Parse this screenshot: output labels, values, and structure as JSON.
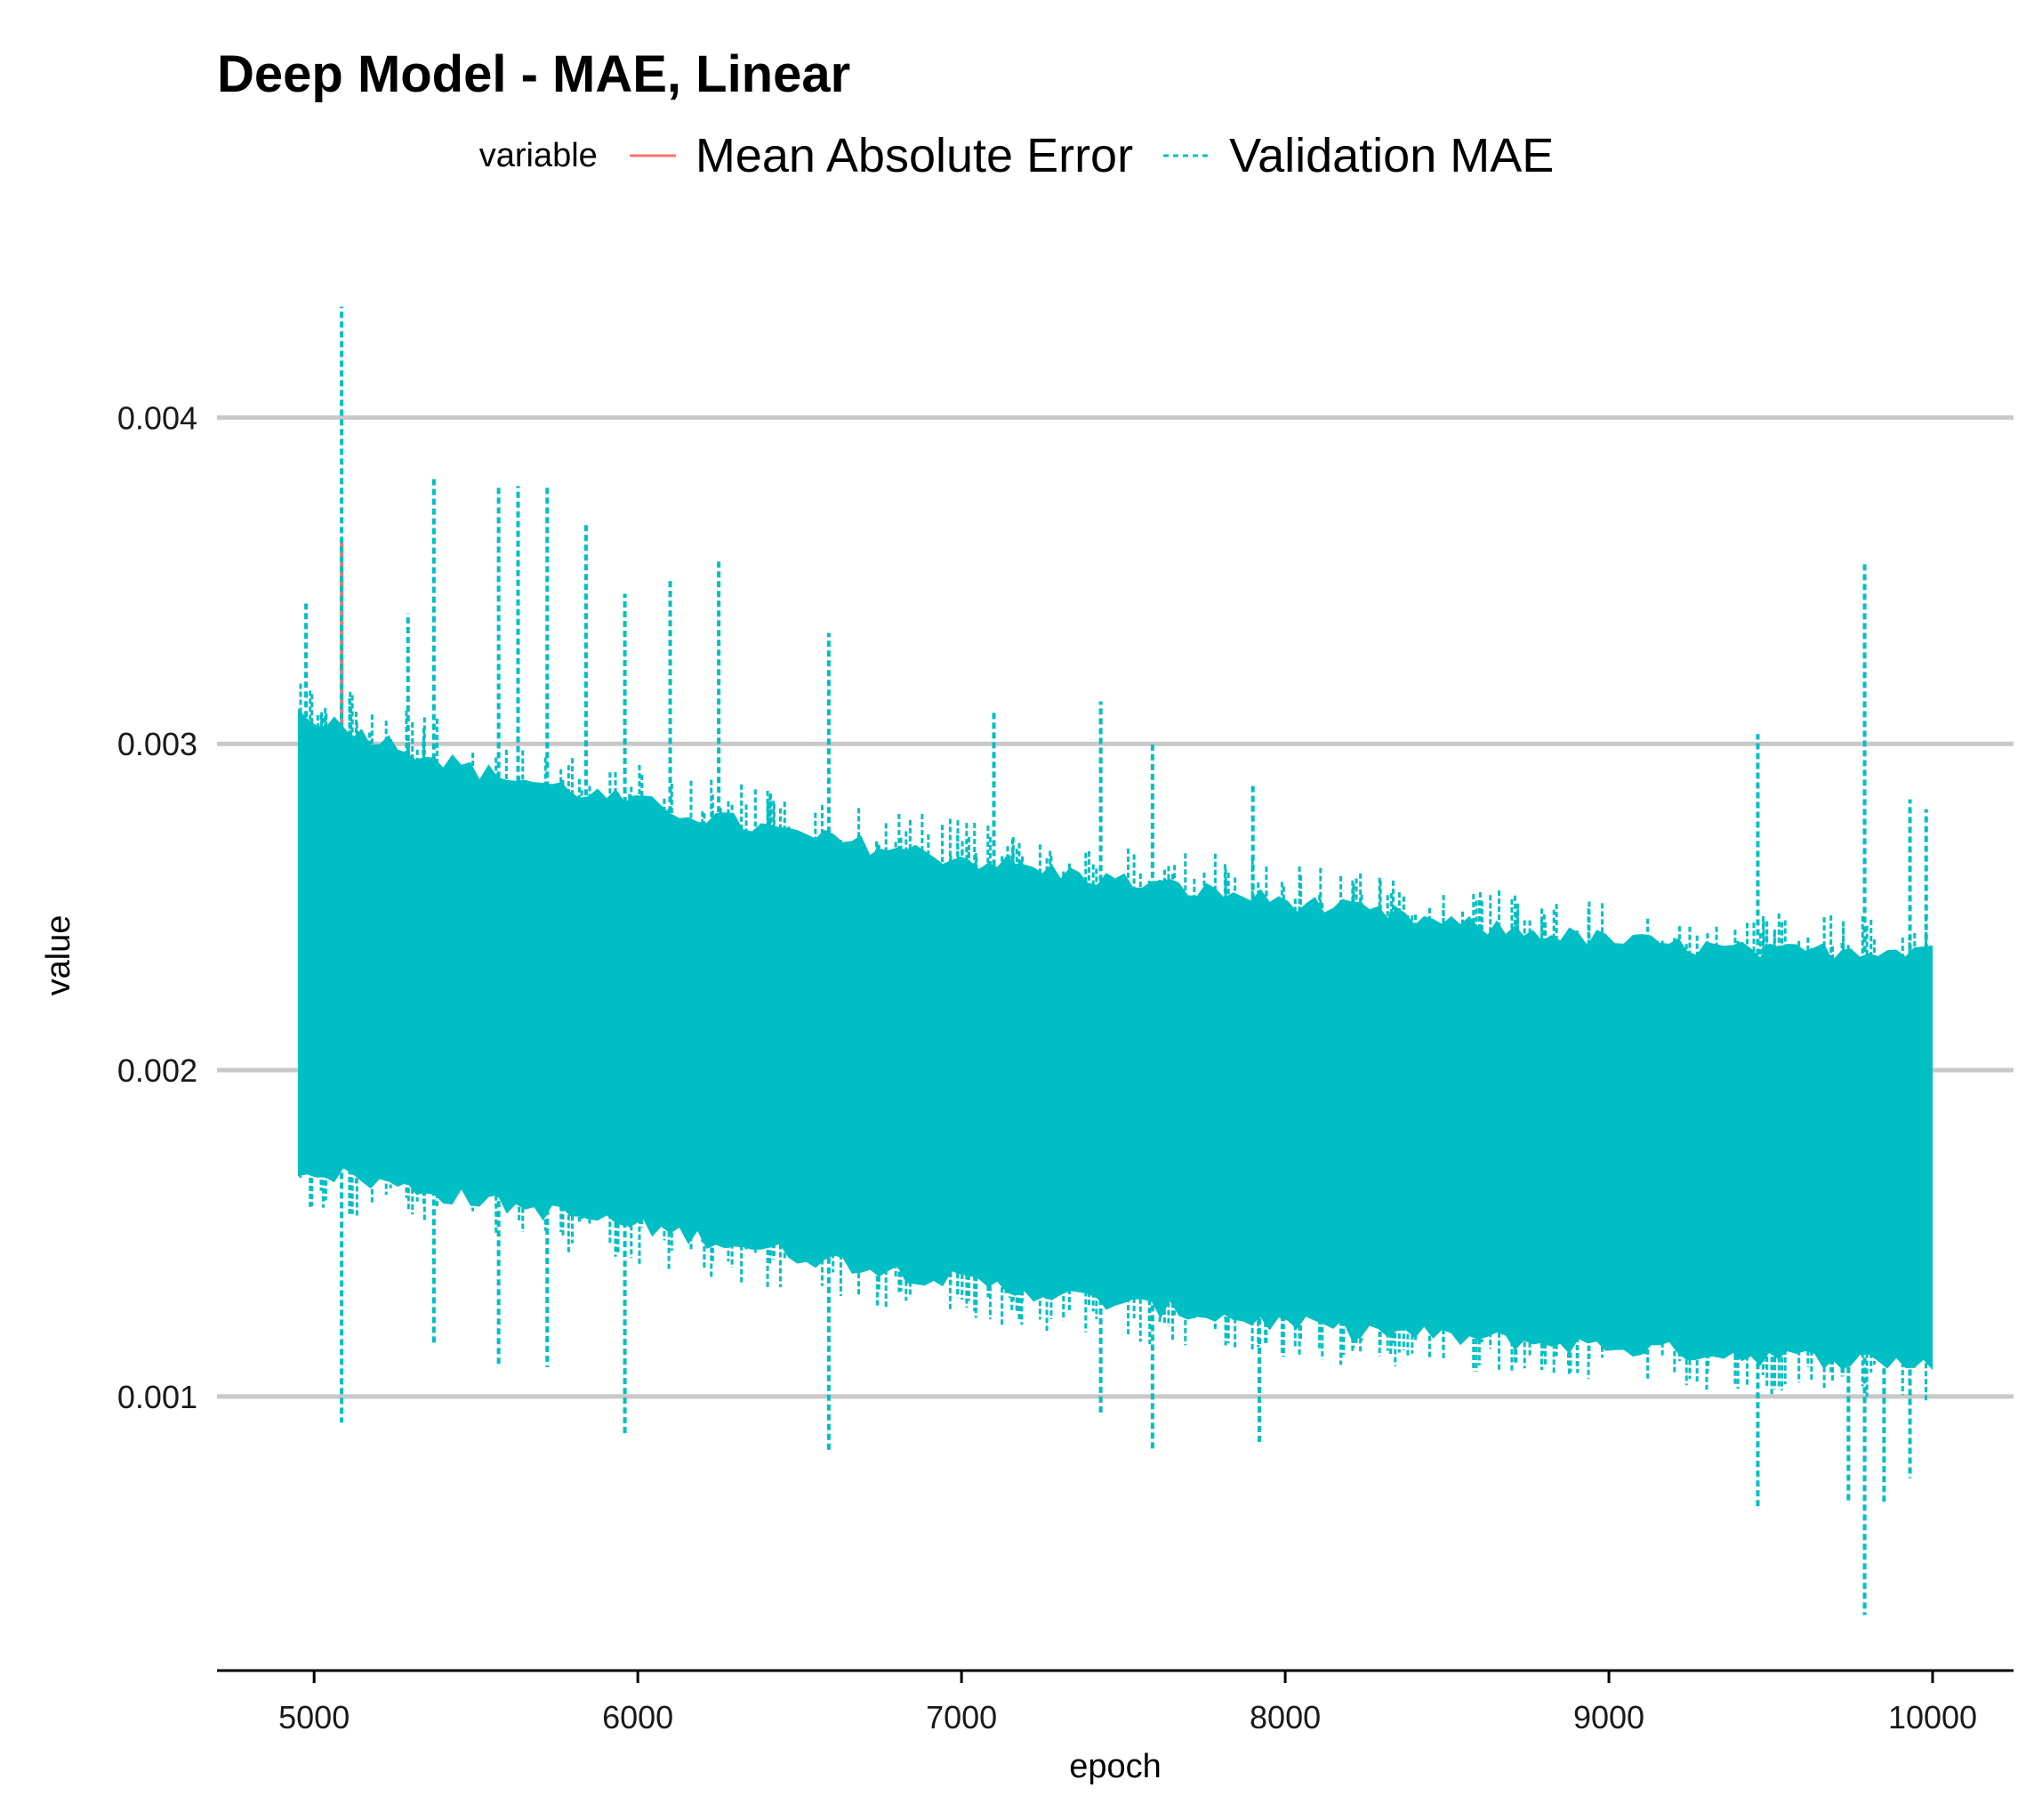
{
  "chart_data": {
    "type": "line",
    "title": "Deep Model - MAE, Linear",
    "xlabel": "epoch",
    "ylabel": "value",
    "legend": {
      "title": "variable",
      "placement": "top",
      "entries": [
        {
          "name": "Mean Absolute Error",
          "color": "#F8766D",
          "linetype": "solid"
        },
        {
          "name": "Validation MAE",
          "color": "#00BFC4",
          "linetype": "dashed"
        }
      ]
    },
    "xlim": [
      4700,
      10250
    ],
    "ylim": [
      0.00016,
      0.00438
    ],
    "xticks": [
      5000,
      6000,
      7000,
      8000,
      9000,
      10000
    ],
    "xtick_labels": [
      "5000",
      "6000",
      "7000",
      "8000",
      "9000",
      "10000"
    ],
    "yticks": [
      0.001,
      0.002,
      0.003,
      0.004
    ],
    "ytick_labels": [
      "0.001",
      "0.002",
      "0.003",
      "0.004"
    ],
    "grid": {
      "major_y": true,
      "major_x": false
    },
    "series": [
      {
        "name": "Mean Absolute Error",
        "x_range": [
          4950,
          10000
        ],
        "envelope_x": [
          4950,
          5500,
          6000,
          6500,
          7000,
          7500,
          8000,
          8500,
          9000,
          9500,
          10000
        ],
        "envelope_upper": [
          0.00305,
          0.00285,
          0.00275,
          0.00268,
          0.0026,
          0.00255,
          0.00248,
          0.00242,
          0.00238,
          0.00232,
          0.00228
        ],
        "envelope_lower": [
          0.00185,
          0.00175,
          0.00168,
          0.00158,
          0.0015,
          0.00142,
          0.00135,
          0.00128,
          0.00124,
          0.0012,
          0.00116
        ],
        "spikes": [
          {
            "x": 5085,
            "y": 0.00362
          }
        ]
      },
      {
        "name": "Validation MAE",
        "x_range": [
          4950,
          10000
        ],
        "envelope_x": [
          4950,
          5500,
          6000,
          6500,
          7000,
          7500,
          8000,
          8500,
          9000,
          9500,
          10000
        ],
        "envelope_upper": [
          0.0031,
          0.00292,
          0.00282,
          0.00272,
          0.00265,
          0.00258,
          0.00252,
          0.00245,
          0.0024,
          0.00236,
          0.00238
        ],
        "envelope_lower": [
          0.0017,
          0.0016,
          0.00152,
          0.00143,
          0.00135,
          0.00128,
          0.00122,
          0.00118,
          0.00115,
          0.00112,
          0.0011
        ],
        "spikes": [
          {
            "x": 4975,
            "y": 0.00343
          },
          {
            "x": 5085,
            "y": 0.00434
          },
          {
            "x": 5290,
            "y": 0.0034
          },
          {
            "x": 5370,
            "y": 0.00382
          },
          {
            "x": 5570,
            "y": 0.00379
          },
          {
            "x": 5630,
            "y": 0.00379
          },
          {
            "x": 5720,
            "y": 0.00379
          },
          {
            "x": 5840,
            "y": 0.00368
          },
          {
            "x": 5960,
            "y": 0.00346
          },
          {
            "x": 6100,
            "y": 0.0035
          },
          {
            "x": 6250,
            "y": 0.00356
          },
          {
            "x": 6590,
            "y": 0.00334
          },
          {
            "x": 7100,
            "y": 0.0031
          },
          {
            "x": 7430,
            "y": 0.00313
          },
          {
            "x": 7590,
            "y": 0.003
          },
          {
            "x": 7900,
            "y": 0.00288
          },
          {
            "x": 9460,
            "y": 0.00303
          },
          {
            "x": 9790,
            "y": 0.00356
          },
          {
            "x": 9930,
            "y": 0.00283
          },
          {
            "x": 9980,
            "y": 0.0028
          },
          {
            "x": 5085,
            "y": 0.00092
          },
          {
            "x": 5370,
            "y": 0.00116
          },
          {
            "x": 5570,
            "y": 0.00109
          },
          {
            "x": 5720,
            "y": 0.00109
          },
          {
            "x": 5960,
            "y": 0.00088
          },
          {
            "x": 6590,
            "y": 0.00083
          },
          {
            "x": 7430,
            "y": 0.00095
          },
          {
            "x": 7590,
            "y": 0.00084
          },
          {
            "x": 7920,
            "y": 0.00085
          },
          {
            "x": 9460,
            "y": 0.00066
          },
          {
            "x": 9740,
            "y": 0.00068
          },
          {
            "x": 9790,
            "y": 0.00033
          },
          {
            "x": 9850,
            "y": 0.00067
          },
          {
            "x": 9930,
            "y": 0.00075
          }
        ]
      }
    ]
  }
}
